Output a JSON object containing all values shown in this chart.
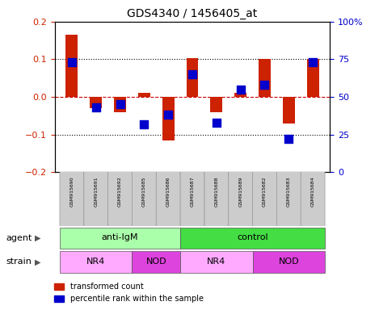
{
  "title": "GDS4340 / 1456405_at",
  "samples": [
    "GSM915690",
    "GSM915691",
    "GSM915692",
    "GSM915685",
    "GSM915686",
    "GSM915687",
    "GSM915688",
    "GSM915689",
    "GSM915682",
    "GSM915683",
    "GSM915684"
  ],
  "red_values": [
    0.165,
    -0.03,
    -0.04,
    0.01,
    -0.115,
    0.103,
    -0.04,
    0.01,
    0.1,
    -0.07,
    0.1
  ],
  "blue_values": [
    73,
    43,
    45,
    32,
    38,
    65,
    33,
    55,
    58,
    22,
    73
  ],
  "ylim_left": [
    -0.2,
    0.2
  ],
  "ylim_right": [
    0,
    100
  ],
  "yticks_left": [
    -0.2,
    -0.1,
    0.0,
    0.1,
    0.2
  ],
  "yticks_right": [
    0,
    25,
    50,
    75,
    100
  ],
  "ytick_labels_right": [
    "0",
    "25",
    "50",
    "75",
    "100%"
  ],
  "red_color": "#cc2200",
  "blue_color": "#0000cc",
  "zero_line_color": "#cc0000",
  "dotted_grid_color": "#000000",
  "agent_groups": [
    {
      "label": "anti-IgM",
      "start": 0,
      "end": 5,
      "color": "#aaffaa"
    },
    {
      "label": "control",
      "start": 5,
      "end": 11,
      "color": "#44dd44"
    }
  ],
  "strain_groups": [
    {
      "label": "NR4",
      "start": 0,
      "end": 3,
      "color": "#ffaaff"
    },
    {
      "label": "NOD",
      "start": 3,
      "end": 5,
      "color": "#dd44dd"
    },
    {
      "label": "NR4",
      "start": 5,
      "end": 8,
      "color": "#ffaaff"
    },
    {
      "label": "NOD",
      "start": 8,
      "end": 11,
      "color": "#dd44dd"
    }
  ],
  "bar_width": 0.5,
  "blue_square_size": 45,
  "legend_red_label": "transformed count",
  "legend_blue_label": "percentile rank within the sample",
  "agent_label": "agent",
  "strain_label": "strain",
  "tick_label_bg": "#cccccc"
}
